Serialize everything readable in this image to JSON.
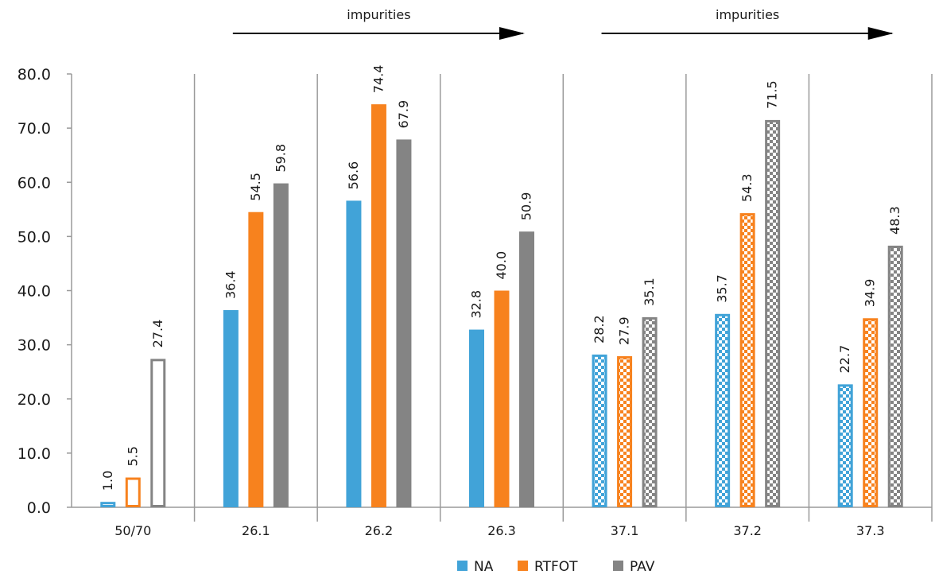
{
  "chart_data": {
    "type": "bar",
    "title": "",
    "xlabel": "",
    "ylabel": "",
    "ylim": [
      0,
      80
    ],
    "yticks": [
      "0.0",
      "10.0",
      "20.0",
      "30.0",
      "40.0",
      "50.0",
      "60.0",
      "70.0",
      "80.0"
    ],
    "ytick_values": [
      0,
      10,
      20,
      30,
      40,
      50,
      60,
      70,
      80
    ],
    "grid": false,
    "legend_position": "bottom-center",
    "categories": [
      "50/70",
      "26.1",
      "26.2",
      "26.3",
      "37.1",
      "37.2",
      "37.3"
    ],
    "category_styles": [
      "outline",
      "solid",
      "solid",
      "solid",
      "checkered",
      "checkered",
      "checkered"
    ],
    "series": [
      {
        "name": "NA",
        "color": "#41a3d8",
        "values": [
          1.0,
          36.4,
          56.6,
          32.8,
          28.2,
          35.7,
          22.7
        ],
        "labels": [
          "1.0",
          "36.4",
          "56.6",
          "32.8",
          "28.2",
          "35.7",
          "22.7"
        ]
      },
      {
        "name": "RTFOT",
        "color": "#f7821e",
        "values": [
          5.5,
          54.5,
          74.4,
          40.0,
          27.9,
          54.3,
          34.9
        ],
        "labels": [
          "5.5",
          "54.5",
          "74.4",
          "40.0",
          "27.9",
          "54.3",
          "34.9"
        ]
      },
      {
        "name": "PAV",
        "color": "#848484",
        "values": [
          27.4,
          59.8,
          67.9,
          50.9,
          35.1,
          71.5,
          48.3
        ],
        "labels": [
          "27.4",
          "59.8",
          "67.9",
          "50.9",
          "35.1",
          "71.5",
          "48.3"
        ]
      }
    ],
    "annotations": [
      {
        "text": "impurities",
        "arrow_from_category": "26.1",
        "arrow_to_category": "26.3"
      },
      {
        "text": "impurities",
        "arrow_from_category": "37.1",
        "arrow_to_category": "37.3"
      }
    ]
  }
}
